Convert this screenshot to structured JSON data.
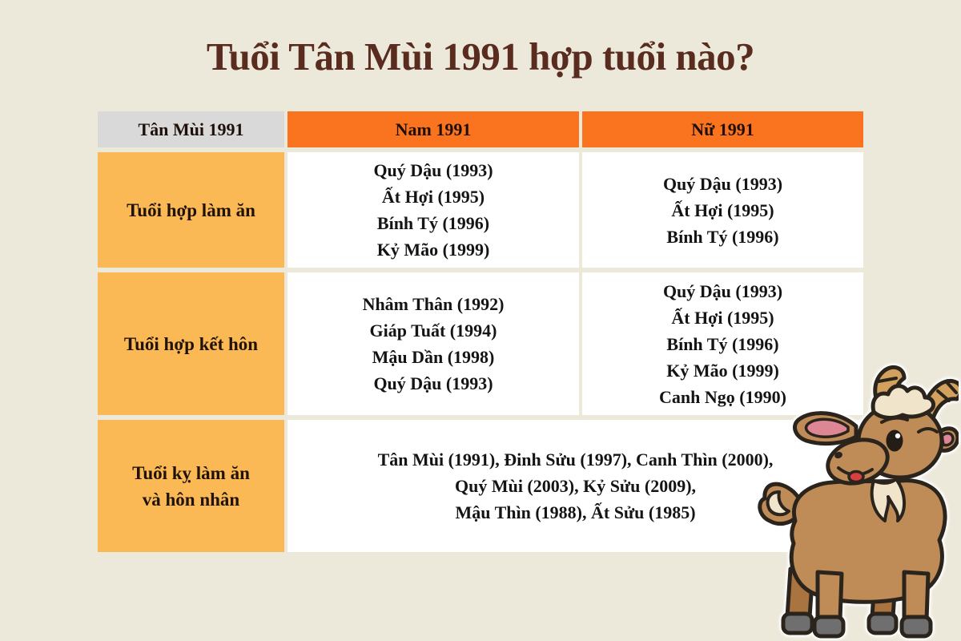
{
  "page": {
    "title": "Tuổi Tân Mùi 1991 hợp tuổi nào?"
  },
  "colors": {
    "background": "#ECE9DB",
    "title_text": "#5A2C20",
    "header_orange": "#FA7420",
    "header_gray": "#D9D9D9",
    "row_label_orange": "#FBB955",
    "cell_white": "#FFFFFF",
    "text_black": "#141414",
    "goat_body_brown": "#BF8B57"
  },
  "table": {
    "headers": [
      "Tân Mùi 1991",
      "Nam 1991",
      "Nữ 1991"
    ],
    "rows": [
      {
        "label": "Tuổi hợp làm ăn",
        "nam": [
          "Quý Dậu (1993)",
          "Ất Hợi (1995)",
          "Bính Tý (1996)",
          "Kỷ Mão (1999)"
        ],
        "nu": [
          "Quý Dậu (1993)",
          "Ất Hợi (1995)",
          "Bính Tý (1996)"
        ]
      },
      {
        "label": "Tuổi hợp kết hôn",
        "nam": [
          "Nhâm Thân (1992)",
          "Giáp Tuất (1994)",
          "Mậu Dần (1998)",
          "Quý Dậu (1993)"
        ],
        "nu": [
          "Quý Dậu (1993)",
          "Ất Hợi (1995)",
          "Bính Tý (1996)",
          "Kỷ Mão (1999)",
          "Canh Ngọ (1990)"
        ]
      },
      {
        "label_lines": [
          "Tuổi kỵ làm ăn",
          "và hôn nhân"
        ],
        "span_lines": [
          "Tân Mùi (1991), Đinh Sửu (1997), Canh Thìn (2000),",
          "Quý Mùi (2003), Kỷ Sửu (2009),",
          "Mậu Thìn (1988), Ất Sửu (1985)"
        ]
      }
    ]
  },
  "illustration": {
    "icon": "goat-cartoon-icon"
  }
}
